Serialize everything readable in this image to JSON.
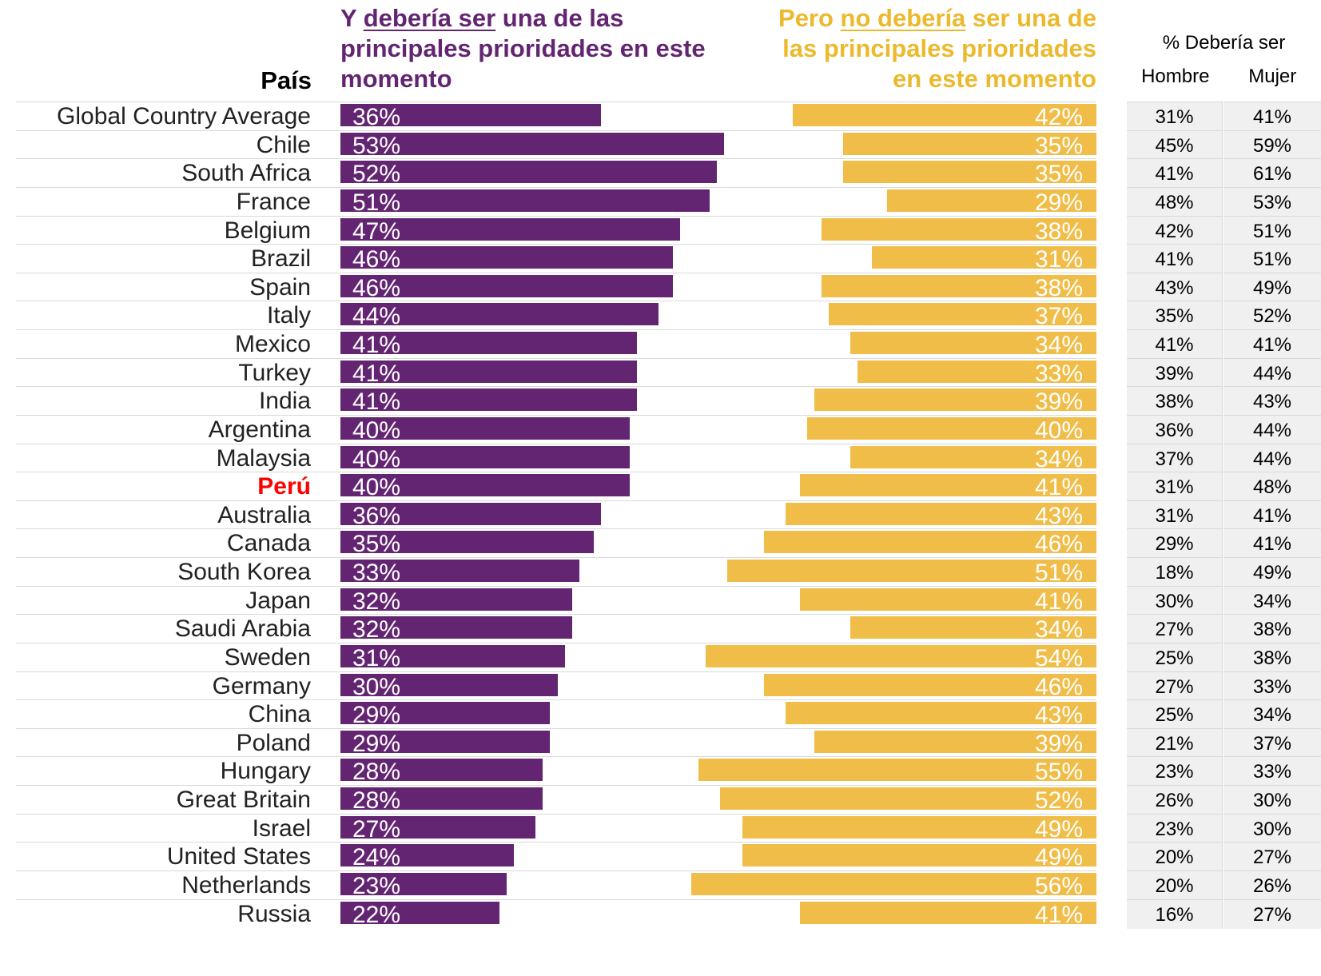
{
  "headers": {
    "country": "País",
    "should_prefix": "Y ",
    "should_underlined": "debería ser",
    "should_suffix": " una de las principales prioridades en este momento",
    "shouldnot_prefix": "Pero ",
    "shouldnot_underlined": "no debería",
    "shouldnot_suffix": " ser una de las principales prioridades en este momento",
    "table_title": "% Debería ser",
    "table_col_men": "Hombre",
    "table_col_women": "Mujer"
  },
  "colors": {
    "should": "#632572",
    "should_not": "#f0bd48",
    "highlight": "#ff0000"
  },
  "chart_data": {
    "type": "bar",
    "highlighted_category": "Perú",
    "categories": [
      "Global Country Average",
      "Chile",
      "South Africa",
      "France",
      "Belgium",
      "Brazil",
      "Spain",
      "Italy",
      "Mexico",
      "Turkey",
      "India",
      "Argentina",
      "Malaysia",
      "Perú",
      "Australia",
      "Canada",
      "South Korea",
      "Japan",
      "Saudi Arabia",
      "Sweden",
      "Germany",
      "China",
      "Poland",
      "Hungary",
      "Great Britain",
      "Israel",
      "United States",
      "Netherlands",
      "Russia"
    ],
    "series": [
      {
        "name": "Y debería ser una de las principales prioridades en este momento",
        "values": [
          36,
          53,
          52,
          51,
          47,
          46,
          46,
          44,
          41,
          41,
          41,
          40,
          40,
          40,
          36,
          35,
          33,
          32,
          32,
          31,
          30,
          29,
          29,
          28,
          28,
          27,
          24,
          23,
          22
        ],
        "labels": [
          "36%",
          "53%",
          "52%",
          "51%",
          "47%",
          "46%",
          "46%",
          "44%",
          "41%",
          "41%",
          "41%",
          "40%",
          "40%",
          "40%",
          "36%",
          "35%",
          "33%",
          "32%",
          "32%",
          "31%",
          "30%",
          "29%",
          "29%",
          "28%",
          "28%",
          "27%",
          "24%",
          "23%",
          "22%"
        ]
      },
      {
        "name": "Pero no debería ser una de las principales prioridades en este momento",
        "values": [
          42,
          35,
          35,
          29,
          38,
          31,
          38,
          37,
          34,
          33,
          39,
          40,
          34,
          41,
          43,
          46,
          51,
          41,
          34,
          54,
          46,
          43,
          39,
          55,
          52,
          49,
          49,
          56,
          41
        ],
        "labels": [
          "42%",
          "35%",
          "35%",
          "29%",
          "38%",
          "31%",
          "38%",
          "37%",
          "34%",
          "33%",
          "39%",
          "40%",
          "34%",
          "41%",
          "43%",
          "46%",
          "51%",
          "41%",
          "34%",
          "54%",
          "46%",
          "43%",
          "39%",
          "55%",
          "52%",
          "49%",
          "49%",
          "56%",
          "41%"
        ]
      }
    ],
    "table": {
      "title": "% Debería ser",
      "columns": [
        "Hombre",
        "Mujer"
      ],
      "men": [
        "31%",
        "45%",
        "41%",
        "48%",
        "42%",
        "41%",
        "43%",
        "35%",
        "41%",
        "39%",
        "38%",
        "36%",
        "37%",
        "31%",
        "31%",
        "29%",
        "18%",
        "30%",
        "27%",
        "25%",
        "27%",
        "25%",
        "21%",
        "23%",
        "26%",
        "23%",
        "20%",
        "20%",
        "16%"
      ],
      "women": [
        "41%",
        "59%",
        "61%",
        "53%",
        "51%",
        "51%",
        "49%",
        "52%",
        "41%",
        "44%",
        "43%",
        "44%",
        "44%",
        "48%",
        "41%",
        "41%",
        "49%",
        "34%",
        "38%",
        "38%",
        "33%",
        "34%",
        "37%",
        "33%",
        "30%",
        "30%",
        "27%",
        "26%",
        "27%"
      ]
    }
  }
}
